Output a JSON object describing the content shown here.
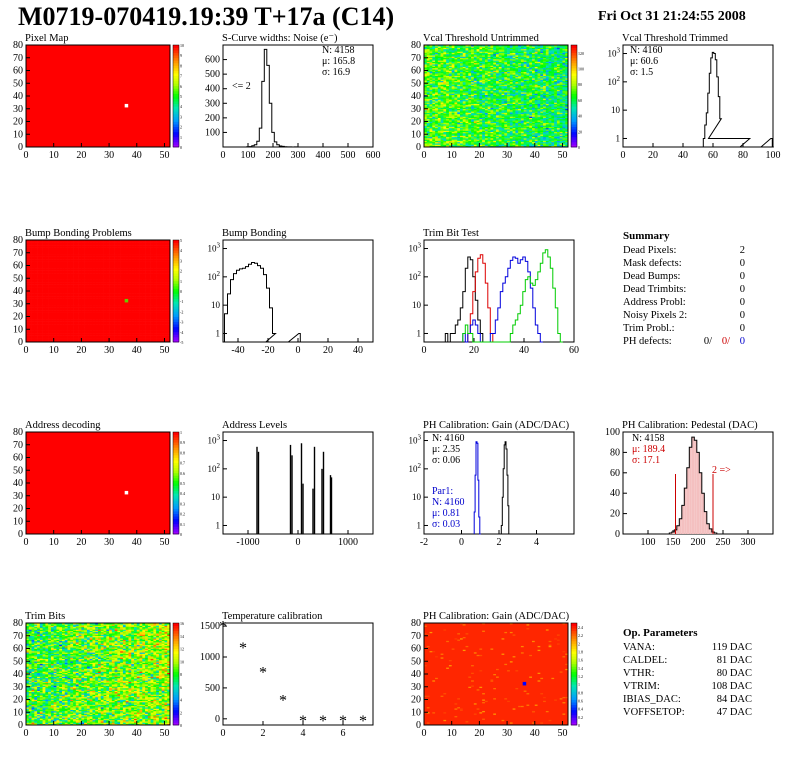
{
  "header": {
    "title": "M0719-070419.19:39 T+17a (C14)",
    "date": "Fri Oct 31 21:24:55 2008"
  },
  "colors": {
    "red_map": "#ff0000",
    "hist_line": "#000000",
    "trim_red": "#dd0000",
    "trim_blue": "#0000dd",
    "trim_green": "#00cc00",
    "param_blue": "#0000cc",
    "param_red": "#cc0000"
  },
  "panels": [
    {
      "title": "Pixel Map"
    },
    {
      "title": "S-Curve widths: Noise (e⁻)"
    },
    {
      "title": "Vcal Threshold Untrimmed"
    },
    {
      "title": "Vcal Threshold Trimmed"
    },
    {
      "title": "Bump Bonding Problems"
    },
    {
      "title": "Bump Bonding"
    },
    {
      "title": "Trim Bit Test"
    },
    {
      "title": ""
    },
    {
      "title": "Address decoding"
    },
    {
      "title": "Address Levels"
    },
    {
      "title": "PH Calibration: Gain (ADC/DAC)"
    },
    {
      "title": "PH Calibration: Pedestal (DAC)"
    },
    {
      "title": "Trim Bits"
    },
    {
      "title": "Temperature calibration"
    },
    {
      "title": "PH Calibration: Gain (ADC/DAC)"
    }
  ],
  "stats": {
    "noise": {
      "n": "N: 4158",
      "mu": "μ: 165.8",
      "sigma": "σ: 16.9",
      "note": "<= 2"
    },
    "vcal_trimmed": {
      "n": "N: 4160",
      "mu": "μ: 60.6",
      "sigma": "σ:  1.5"
    },
    "gain": {
      "n": "N: 4160",
      "mu": "μ: 2.35",
      "sigma": "σ: 0.06",
      "par_label": "Par1:",
      "par_n": "N: 4160",
      "par_mu": "μ: 0.81",
      "par_sigma": "σ: 0.03"
    },
    "pedestal": {
      "n": "N: 4158",
      "mu": "μ: 189.4",
      "sigma": "σ: 17.1",
      "note": "2 =>"
    }
  },
  "summary": {
    "title": "Summary",
    "rows": [
      {
        "label": "Dead Pixels:",
        "value": "2"
      },
      {
        "label": "Mask defects:",
        "value": "0"
      },
      {
        "label": "Dead Bumps:",
        "value": "0"
      },
      {
        "label": "Dead Trimbits:",
        "value": "0"
      },
      {
        "label": "Address Probl:",
        "value": "0"
      },
      {
        "label": "Noisy Pixels 2:",
        "value": "0"
      },
      {
        "label": "Trim Probl.:",
        "value": "0"
      }
    ],
    "ph_label": "PH defects:",
    "ph_values": [
      "0/",
      "0/",
      "0"
    ]
  },
  "op_params": {
    "title": "Op. Parameters",
    "rows": [
      {
        "label": "VANA:",
        "value": "119 DAC"
      },
      {
        "label": "CALDEL:",
        "value": "81 DAC"
      },
      {
        "label": "VTHR:",
        "value": "80 DAC"
      },
      {
        "label": "VTRIM:",
        "value": "108 DAC"
      },
      {
        "label": "IBIAS_DAC:",
        "value": "84 DAC"
      },
      {
        "label": "VOFFSETOP:",
        "value": "47 DAC"
      }
    ]
  },
  "chart_data": [
    {
      "id": "pixel_map",
      "type": "heatmap",
      "title": "Pixel Map",
      "xlim": [
        0,
        52
      ],
      "ylim": [
        0,
        80
      ],
      "x_ticks": [
        0,
        10,
        20,
        30,
        40,
        50
      ],
      "y_ticks": [
        0,
        10,
        20,
        30,
        40,
        50,
        60,
        70,
        80
      ],
      "fill_value": 10,
      "zlim": [
        0,
        10
      ],
      "z_ticks": [
        0,
        1,
        2,
        3,
        4,
        5,
        6,
        7,
        8,
        9,
        10
      ],
      "hot_pixels": [
        {
          "x": 36,
          "y": 32,
          "value": 0
        }
      ]
    },
    {
      "id": "noise",
      "type": "histogram",
      "title": "S-Curve widths: Noise (e⁻)",
      "xlim": [
        0,
        600
      ],
      "ylim": [
        0,
        700
      ],
      "x_ticks": [
        0,
        100,
        200,
        300,
        400,
        500,
        600
      ],
      "y_ticks": [
        100,
        200,
        300,
        400,
        500,
        600
      ],
      "x": [
        90,
        100,
        110,
        120,
        130,
        140,
        150,
        160,
        170,
        180,
        190,
        200,
        210,
        220,
        230,
        240,
        250,
        260,
        270,
        280,
        290,
        300
      ],
      "values": [
        0,
        2,
        3,
        8,
        15,
        40,
        130,
        450,
        670,
        560,
        300,
        100,
        35,
        15,
        7,
        4,
        2,
        1,
        1,
        0,
        1,
        0
      ]
    },
    {
      "id": "vcal_untrimmed",
      "type": "heatmap",
      "title": "Vcal Threshold Untrimmed",
      "xlim": [
        0,
        52
      ],
      "ylim": [
        0,
        80
      ],
      "x_ticks": [
        0,
        10,
        20,
        30,
        40,
        50
      ],
      "y_ticks": [
        0,
        10,
        20,
        30,
        40,
        50,
        60,
        70,
        80
      ],
      "zlim": [
        0,
        130
      ],
      "z_ticks": [
        0,
        20,
        40,
        60,
        80,
        100,
        120
      ],
      "mean_value": 70
    },
    {
      "id": "vcal_trimmed",
      "type": "histogram",
      "title": "Vcal Threshold Trimmed",
      "log_y": true,
      "xlim": [
        0,
        100
      ],
      "ylim": [
        0.5,
        2000
      ],
      "x_ticks": [
        0,
        20,
        40,
        60,
        80,
        100
      ],
      "y_ticks": [
        1,
        10,
        100,
        1000
      ],
      "x": [
        54,
        55,
        56,
        57,
        58,
        59,
        60,
        61,
        62,
        63,
        64,
        65,
        66,
        84,
        85,
        99,
        100
      ],
      "values": [
        1,
        3,
        8,
        40,
        200,
        700,
        1100,
        1000,
        600,
        150,
        30,
        5,
        1,
        1,
        0,
        1,
        0
      ]
    },
    {
      "id": "bump_problems",
      "type": "heatmap",
      "title": "Bump Bonding Problems",
      "xlim": [
        0,
        52
      ],
      "ylim": [
        0,
        80
      ],
      "x_ticks": [
        0,
        10,
        20,
        30,
        40,
        50
      ],
      "y_ticks": [
        0,
        10,
        20,
        30,
        40,
        50,
        60,
        70,
        80
      ],
      "zlim": [
        -5,
        5
      ],
      "z_ticks": [
        -5,
        -4,
        -3,
        -2,
        -1,
        0,
        1,
        2,
        3,
        4,
        5
      ],
      "hot_pixels": [
        {
          "x": 36,
          "y": 32,
          "value": 1
        }
      ]
    },
    {
      "id": "bump_bonding",
      "type": "histogram",
      "title": "Bump Bonding",
      "log_y": true,
      "xlim": [
        -50,
        50
      ],
      "ylim": [
        0.5,
        2000
      ],
      "x_ticks": [
        -40,
        -20,
        0,
        20,
        40
      ],
      "y_ticks": [
        1,
        10,
        100,
        1000
      ],
      "x": [
        -48,
        -46,
        -44,
        -42,
        -40,
        -38,
        -36,
        -34,
        -32,
        -30,
        -28,
        -26,
        -24,
        -22,
        -20,
        -18,
        -16,
        -14,
        1,
        2,
        3
      ],
      "values": [
        5,
        25,
        80,
        130,
        170,
        190,
        200,
        230,
        280,
        320,
        300,
        250,
        200,
        120,
        40,
        8,
        1,
        0,
        1,
        0,
        0
      ]
    },
    {
      "id": "trim_bits",
      "type": "histogram",
      "title": "Trim Bit Test",
      "log_y": true,
      "xlim": [
        0,
        60
      ],
      "ylim": [
        0.5,
        2000
      ],
      "x_ticks": [
        0,
        20,
        40,
        60
      ],
      "y_ticks": [
        1,
        10,
        100,
        1000
      ],
      "series": [
        {
          "color": "#000000",
          "x": [
            9,
            10,
            11,
            12,
            13,
            14,
            15,
            16,
            17,
            18,
            19,
            20,
            21,
            22,
            23,
            24
          ],
          "values": [
            1,
            0,
            1,
            1,
            2,
            3,
            8,
            30,
            200,
            500,
            400,
            100,
            15,
            3,
            1,
            0
          ]
        },
        {
          "color": "#dd0000",
          "x": [
            18,
            19,
            20,
            21,
            22,
            23,
            24,
            25,
            26,
            27,
            28
          ],
          "values": [
            1,
            5,
            30,
            150,
            450,
            600,
            300,
            60,
            8,
            1,
            0
          ]
        },
        {
          "color": "#0000dd",
          "x": [
            16,
            17,
            18,
            19,
            20,
            21,
            22,
            23,
            24,
            25,
            26,
            27,
            28,
            29,
            30,
            31,
            32,
            33,
            34,
            35,
            36,
            37,
            38,
            39,
            40,
            41,
            42,
            43,
            44,
            45,
            46,
            47
          ],
          "values": [
            1,
            0,
            1,
            2,
            3,
            2,
            1,
            0,
            0,
            0,
            0,
            1,
            1,
            3,
            8,
            30,
            60,
            100,
            200,
            380,
            500,
            450,
            300,
            400,
            500,
            350,
            150,
            40,
            8,
            2,
            1,
            0
          ]
        },
        {
          "color": "#00cc00",
          "x": [
            16,
            17,
            18,
            19,
            20,
            21,
            22,
            23,
            24,
            25,
            26,
            27,
            28,
            29,
            30,
            31,
            32,
            33,
            34,
            35,
            36,
            37,
            38,
            39,
            40,
            41,
            42,
            43,
            44,
            45,
            46,
            47,
            48,
            49,
            50,
            51,
            52,
            53,
            54,
            55
          ],
          "values": [
            1,
            2,
            1,
            1,
            0,
            0,
            0,
            0,
            0,
            0,
            0,
            0,
            0,
            0,
            0,
            0,
            0,
            0,
            0,
            1,
            2,
            3,
            5,
            10,
            30,
            80,
            100,
            60,
            50,
            80,
            150,
            300,
            700,
            900,
            500,
            200,
            40,
            8,
            1,
            0
          ]
        }
      ]
    },
    {
      "id": "address_decoding",
      "type": "heatmap",
      "title": "Address decoding",
      "xlim": [
        0,
        52
      ],
      "ylim": [
        0,
        80
      ],
      "x_ticks": [
        0,
        10,
        20,
        30,
        40,
        50
      ],
      "y_ticks": [
        0,
        10,
        20,
        30,
        40,
        50,
        60,
        70,
        80
      ],
      "fill_value": 1,
      "zlim": [
        0,
        1
      ],
      "z_ticks": [
        0,
        0.1,
        0.2,
        0.3,
        0.4,
        0.5,
        0.6,
        0.7,
        0.8,
        0.9,
        1
      ],
      "hot_pixels": [
        {
          "x": 36,
          "y": 32,
          "value": 0
        }
      ]
    },
    {
      "id": "address_levels",
      "type": "histogram",
      "title": "Address Levels",
      "log_y": true,
      "xlim": [
        -1500,
        1500
      ],
      "ylim": [
        0.5,
        2000
      ],
      "x_ticks": [
        -1000,
        0,
        1000
      ],
      "y_ticks": [
        1,
        10,
        100,
        1000
      ],
      "peaks": [
        {
          "x": -820,
          "value": 600
        },
        {
          "x": -790,
          "value": 400
        },
        {
          "x": -150,
          "value": 700
        },
        {
          "x": -120,
          "value": 300
        },
        {
          "x": 70,
          "value": 800
        },
        {
          "x": 100,
          "value": 30
        },
        {
          "x": 300,
          "value": 20
        },
        {
          "x": 330,
          "value": 600
        },
        {
          "x": 480,
          "value": 100
        },
        {
          "x": 510,
          "value": 400
        },
        {
          "x": 650,
          "value": 60
        },
        {
          "x": 670,
          "value": 50
        }
      ]
    },
    {
      "id": "ph_gain",
      "type": "histogram",
      "title": "PH Calibration: Gain (ADC/DAC)",
      "log_y": true,
      "xlim": [
        -2,
        6
      ],
      "ylim": [
        0.5,
        2000
      ],
      "x_ticks": [
        -2,
        0,
        2,
        4
      ],
      "y_ticks": [
        1,
        10,
        100,
        1000
      ],
      "series": [
        {
          "color": "#000000",
          "x": [
            2.15,
            2.2,
            2.25,
            2.3,
            2.35,
            2.4,
            2.45,
            2.5,
            2.55
          ],
          "values": [
            1,
            10,
            100,
            700,
            900,
            500,
            60,
            5,
            0
          ]
        },
        {
          "color": "#0000dd",
          "x": [
            0.7,
            0.75,
            0.8,
            0.85,
            0.9,
            0.95,
            1.0
          ],
          "values": [
            3,
            60,
            900,
            800,
            40,
            2,
            0
          ]
        }
      ]
    },
    {
      "id": "ph_pedestal",
      "type": "histogram",
      "title": "PH Calibration: Pedestal (DAC)",
      "xlim": [
        50,
        350
      ],
      "ylim": [
        0,
        100
      ],
      "x_ticks": [
        100,
        150,
        200,
        250,
        300
      ],
      "y_ticks": [
        0,
        20,
        40,
        60,
        80,
        100
      ],
      "x": [
        145,
        150,
        155,
        160,
        165,
        170,
        175,
        180,
        185,
        190,
        195,
        200,
        205,
        210,
        215,
        220,
        225,
        230,
        235,
        240
      ],
      "values": [
        1,
        2,
        4,
        8,
        15,
        28,
        45,
        65,
        85,
        95,
        92,
        80,
        60,
        40,
        22,
        10,
        5,
        2,
        1,
        0
      ],
      "cut_lines": [
        155,
        230
      ]
    },
    {
      "id": "trim_bits_map",
      "type": "heatmap",
      "title": "Trim Bits",
      "xlim": [
        0,
        52
      ],
      "ylim": [
        0,
        80
      ],
      "x_ticks": [
        0,
        10,
        20,
        30,
        40,
        50
      ],
      "y_ticks": [
        0,
        10,
        20,
        30,
        40,
        50,
        60,
        70,
        80
      ],
      "zlim": [
        0,
        16
      ],
      "z_ticks": [
        0,
        2,
        4,
        6,
        8,
        10,
        12,
        14,
        16
      ],
      "mean_value": 8
    },
    {
      "id": "temperature",
      "type": "scatter",
      "title": "Temperature calibration",
      "xlim": [
        0,
        7.5
      ],
      "ylim": [
        -100,
        1550
      ],
      "x_ticks": [
        0,
        2,
        4,
        6
      ],
      "y_ticks": [
        0,
        500,
        1000,
        1500
      ],
      "x": [
        0,
        1,
        2,
        3,
        4,
        5,
        6,
        7
      ],
      "values": [
        1480,
        1130,
        730,
        280,
        -50,
        -50,
        -50,
        -50
      ]
    },
    {
      "id": "ph_gain_map",
      "type": "heatmap",
      "title": "PH Calibration: Gain (ADC/DAC)",
      "xlim": [
        0,
        52
      ],
      "ylim": [
        0,
        80
      ],
      "x_ticks": [
        0,
        10,
        20,
        30,
        40,
        50
      ],
      "y_ticks": [
        0,
        10,
        20,
        30,
        40,
        50,
        60,
        70,
        80
      ],
      "zlim": [
        0,
        2.5
      ],
      "z_ticks": [
        0,
        0.2,
        0.4,
        0.6,
        0.8,
        1,
        1.2,
        1.4,
        1.6,
        1.8,
        2,
        2.2,
        2.4
      ],
      "fill_value": 2.4,
      "hot_pixels": [
        {
          "x": 36,
          "y": 32,
          "value": 0.8
        }
      ]
    }
  ]
}
